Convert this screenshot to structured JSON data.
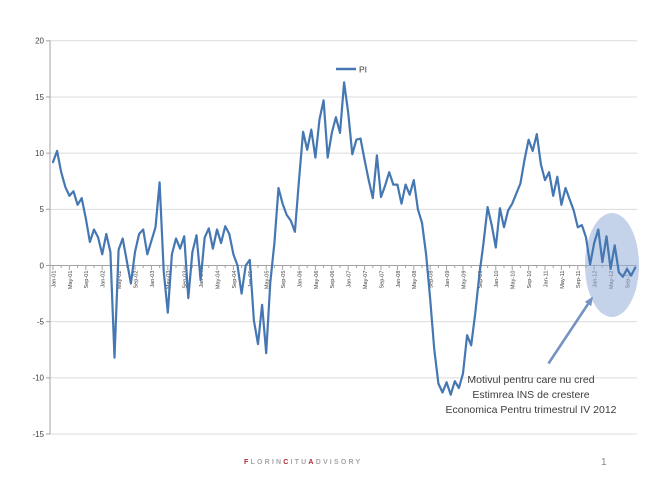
{
  "slide": {
    "page_number": "1"
  },
  "annotation": {
    "line1": "Motivul pentru care nu cred",
    "line2": "Estimrea INS de crestere",
    "line3": "Economica Pentru trimestrul IV 2012"
  },
  "footer": {
    "parts": [
      {
        "text": "F"
      },
      {
        "text": "LORIN"
      },
      {
        "text": "C"
      },
      {
        "text": "ITU"
      },
      {
        "text": "A"
      },
      {
        "text": "DVISORY"
      }
    ],
    "accent_color": "#b4232f",
    "muted_color": "#a6a6a6"
  },
  "chart_data": {
    "type": "line",
    "title": "",
    "xlabel": "",
    "ylabel": "",
    "ylim": [
      -15,
      20
    ],
    "grid": true,
    "legend_position": "top-center",
    "y_ticks": [
      20,
      15,
      10,
      5,
      0,
      -5,
      -10,
      -15
    ],
    "x_monthly_start": "Jan-01",
    "x_label_every_n_months": 4,
    "x_tick_labels": [
      "Jan-01",
      "May-01",
      "Sep-01",
      "Jan-02",
      "May-02",
      "Sep-02",
      "Jan-03",
      "May-03",
      "Sep-03",
      "Jan-04",
      "May-04",
      "Sep-04",
      "Jan-05",
      "May-05",
      "Sep-05",
      "Jan-06",
      "May-06",
      "Sep-06",
      "Jan-07",
      "May-07",
      "Sep-07",
      "Jan-08",
      "May-08",
      "Sep-08",
      "Jan-09",
      "May-09",
      "Sep-09",
      "Jan-10",
      "May-10",
      "Sep-10",
      "Jan-11",
      "May-11",
      "Sep-11",
      "Jan-12",
      "May-12",
      "Sep-12"
    ],
    "series": [
      {
        "name": "PI",
        "color": "#4577b2",
        "values": [
          9.2,
          10.2,
          8.3,
          7.0,
          6.2,
          6.6,
          5.4,
          6.0,
          4.2,
          2.1,
          3.2,
          2.5,
          1.0,
          2.8,
          1.2,
          -8.2,
          1.4,
          2.4,
          0.4,
          -1.6,
          1.2,
          2.8,
          3.2,
          1.0,
          2.2,
          3.4,
          7.4,
          -0.5,
          -4.2,
          1.0,
          2.4,
          1.5,
          2.6,
          -2.9,
          1.2,
          2.7,
          -1.3,
          2.5,
          3.3,
          1.5,
          3.2,
          2.0,
          3.5,
          2.8,
          1.0,
          0.0,
          -2.5,
          0.0,
          0.5,
          -4.9,
          -7.0,
          -3.5,
          -7.8,
          -1.5,
          2.0,
          6.9,
          5.5,
          4.5,
          4.0,
          3.0,
          7.6,
          11.9,
          10.3,
          12.1,
          9.6,
          13.0,
          14.7,
          9.6,
          11.8,
          13.2,
          11.8,
          16.3,
          13.6,
          9.9,
          11.2,
          11.3,
          9.4,
          7.6,
          6.0,
          9.8,
          6.1,
          7.1,
          8.3,
          7.2,
          7.2,
          5.5,
          7.2,
          6.3,
          7.6,
          5.0,
          3.8,
          1.0,
          -3.0,
          -7.5,
          -10.5,
          -11.3,
          -10.4,
          -11.5,
          -10.3,
          -10.9,
          -9.6,
          -6.2,
          -7.1,
          -4.2,
          -0.8,
          2.0,
          5.2,
          3.6,
          1.6,
          5.1,
          3.4,
          4.9,
          5.5,
          6.4,
          7.3,
          9.4,
          11.2,
          10.2,
          11.7,
          9.0,
          7.6,
          8.3,
          6.2,
          7.9,
          5.4,
          6.9,
          5.9,
          4.9,
          3.4,
          3.6,
          2.5,
          0.1,
          2.0,
          3.2,
          0.3,
          2.6,
          -0.3,
          1.8,
          -0.6,
          -1.0,
          -0.3,
          -0.9,
          -0.2
        ]
      }
    ],
    "highlight": {
      "shape": "ellipse",
      "region": "mid-2012 to end of series",
      "color": "#93afd7"
    },
    "annotation_arrow": true,
    "colors": {
      "gridline": "#dcdcdc",
      "axis": "#a3a3a3",
      "tick_text": "#3f3f3f",
      "arrow": "#7493c4"
    }
  }
}
